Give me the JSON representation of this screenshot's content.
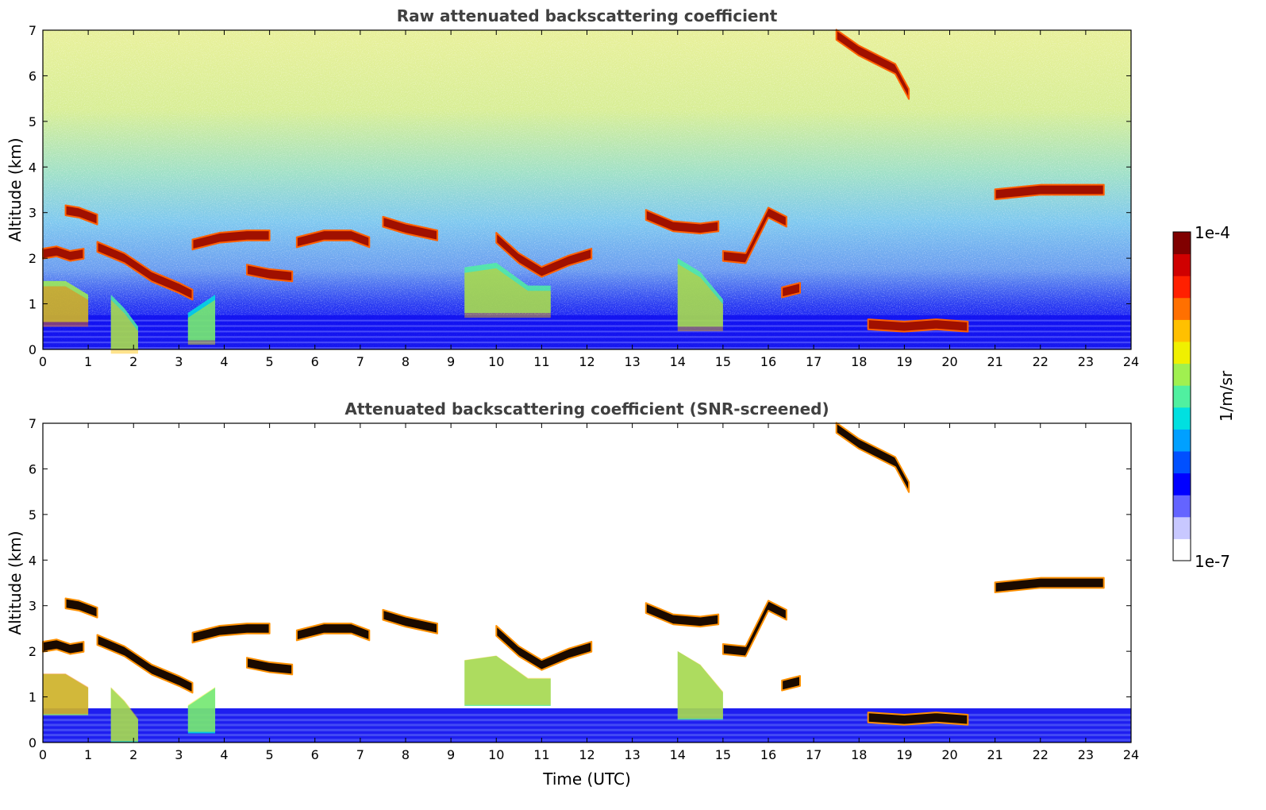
{
  "chart_data": [
    {
      "type": "heatmap",
      "title": "Raw attenuated backscattering coefficient",
      "xlabel": "",
      "ylabel": "Altitude (km)",
      "xlim": [
        0,
        24
      ],
      "ylim": [
        0,
        7
      ],
      "x_ticks": [
        "0",
        "1",
        "2",
        "3",
        "4",
        "5",
        "6",
        "7",
        "8",
        "9",
        "10",
        "11",
        "12",
        "13",
        "14",
        "15",
        "16",
        "17",
        "18",
        "19",
        "20",
        "21",
        "22",
        "23",
        "24"
      ],
      "y_ticks": [
        "0",
        "1",
        "2",
        "3",
        "4",
        "5",
        "6",
        "7"
      ],
      "features": [
        {
          "name": "cloud-layer-1",
          "x": [
            0.0,
            0.3,
            0.6,
            0.9
          ],
          "y": [
            2.1,
            2.15,
            2.05,
            2.1
          ],
          "level": 0.95
        },
        {
          "name": "cloud-layer-2",
          "x": [
            0.5,
            0.8,
            1.2
          ],
          "y": [
            3.05,
            3.0,
            2.85
          ],
          "level": 0.95
        },
        {
          "name": "cloud-layer-3",
          "x": [
            1.2,
            1.8,
            2.4,
            3.0,
            3.3
          ],
          "y": [
            2.25,
            2.0,
            1.6,
            1.35,
            1.2
          ],
          "level": 0.95
        },
        {
          "name": "cloud-layer-4",
          "x": [
            3.3,
            3.9,
            4.5,
            5.0
          ],
          "y": [
            2.3,
            2.45,
            2.5,
            2.5
          ],
          "level": 0.95
        },
        {
          "name": "cloud-layer-5",
          "x": [
            4.5,
            5.0,
            5.5
          ],
          "y": [
            1.75,
            1.65,
            1.6
          ],
          "level": 0.95
        },
        {
          "name": "cloud-layer-6",
          "x": [
            5.6,
            6.2,
            6.8,
            7.2
          ],
          "y": [
            2.35,
            2.5,
            2.5,
            2.35
          ],
          "level": 0.95
        },
        {
          "name": "cloud-layer-7",
          "x": [
            7.5,
            8.0,
            8.7
          ],
          "y": [
            2.8,
            2.65,
            2.5
          ],
          "level": 0.95
        },
        {
          "name": "cloud-layer-8",
          "x": [
            10.0,
            10.5,
            11.0,
            11.6,
            12.1
          ],
          "y": [
            2.45,
            2.0,
            1.7,
            1.95,
            2.1
          ],
          "level": 0.95
        },
        {
          "name": "cloud-layer-9",
          "x": [
            13.3,
            13.9,
            14.5,
            14.9
          ],
          "y": [
            2.95,
            2.7,
            2.65,
            2.7
          ],
          "level": 0.95
        },
        {
          "name": "cloud-layer-10",
          "x": [
            15.0,
            15.5,
            16.0,
            16.4
          ],
          "y": [
            2.05,
            2.0,
            3.0,
            2.8
          ],
          "level": 0.95
        },
        {
          "name": "cloud-layer-11",
          "x": [
            16.3,
            16.7
          ],
          "y": [
            1.25,
            1.35
          ],
          "level": 0.95
        },
        {
          "name": "cloud-layer-12",
          "x": [
            17.5,
            18.0,
            18.8,
            19.1
          ],
          "y": [
            6.9,
            6.55,
            6.15,
            5.6
          ],
          "level": 0.9
        },
        {
          "name": "cloud-layer-13",
          "x": [
            18.2,
            19.0,
            19.7,
            20.4
          ],
          "y": [
            0.55,
            0.5,
            0.55,
            0.5
          ],
          "level": 0.95
        },
        {
          "name": "cloud-layer-14",
          "x": [
            21.0,
            21.5,
            22.0,
            22.8,
            23.4
          ],
          "y": [
            3.4,
            3.45,
            3.5,
            3.5,
            3.5
          ],
          "level": 0.95
        },
        {
          "name": "aerosol-plume-1",
          "x": [
            0.0,
            0.5,
            1.0
          ],
          "y": [
            1.5,
            1.5,
            1.2
          ],
          "level": 0.55
        },
        {
          "name": "aerosol-plume-2",
          "x": [
            1.5,
            1.8,
            2.1
          ],
          "y": [
            1.2,
            0.9,
            0.5
          ],
          "level": 0.5
        },
        {
          "name": "aerosol-plume-3",
          "x": [
            3.2,
            3.5,
            3.8
          ],
          "y": [
            0.8,
            1.0,
            1.2
          ],
          "level": 0.45
        },
        {
          "name": "aerosol-plume-4",
          "x": [
            9.3,
            10.0,
            10.7,
            11.2
          ],
          "y": [
            1.8,
            1.9,
            1.4,
            1.4
          ],
          "level": 0.5
        },
        {
          "name": "aerosol-plume-5",
          "x": [
            14.0,
            14.5,
            15.0
          ],
          "y": [
            2.0,
            1.7,
            1.1
          ],
          "level": 0.5
        }
      ],
      "boundary_layer_top_km": 0.75
    },
    {
      "type": "heatmap",
      "title": "Attenuated backscattering coefficient (SNR-screened)",
      "xlabel": "Time (UTC)",
      "ylabel": "Altitude (km)",
      "xlim": [
        0,
        24
      ],
      "ylim": [
        0,
        7
      ],
      "x_ticks": [
        "0",
        "1",
        "2",
        "3",
        "4",
        "5",
        "6",
        "7",
        "8",
        "9",
        "10",
        "11",
        "12",
        "13",
        "14",
        "15",
        "16",
        "17",
        "18",
        "19",
        "20",
        "21",
        "22",
        "23",
        "24"
      ],
      "y_ticks": [
        "0",
        "1",
        "2",
        "3",
        "4",
        "5",
        "6",
        "7"
      ],
      "screened": true,
      "boundary_layer_top_km": 0.75
    }
  ],
  "colorbar": {
    "label": "1/m/sr",
    "max_label": "1e-4",
    "min_label": "1e-7",
    "colors": [
      "#ffffff",
      "#c8c8ff",
      "#6464ff",
      "#0000ff",
      "#0050ff",
      "#00a0ff",
      "#00e0e0",
      "#50f0a0",
      "#a0f050",
      "#f0f000",
      "#ffc000",
      "#ff7000",
      "#ff2000",
      "#d00000",
      "#800000"
    ]
  }
}
